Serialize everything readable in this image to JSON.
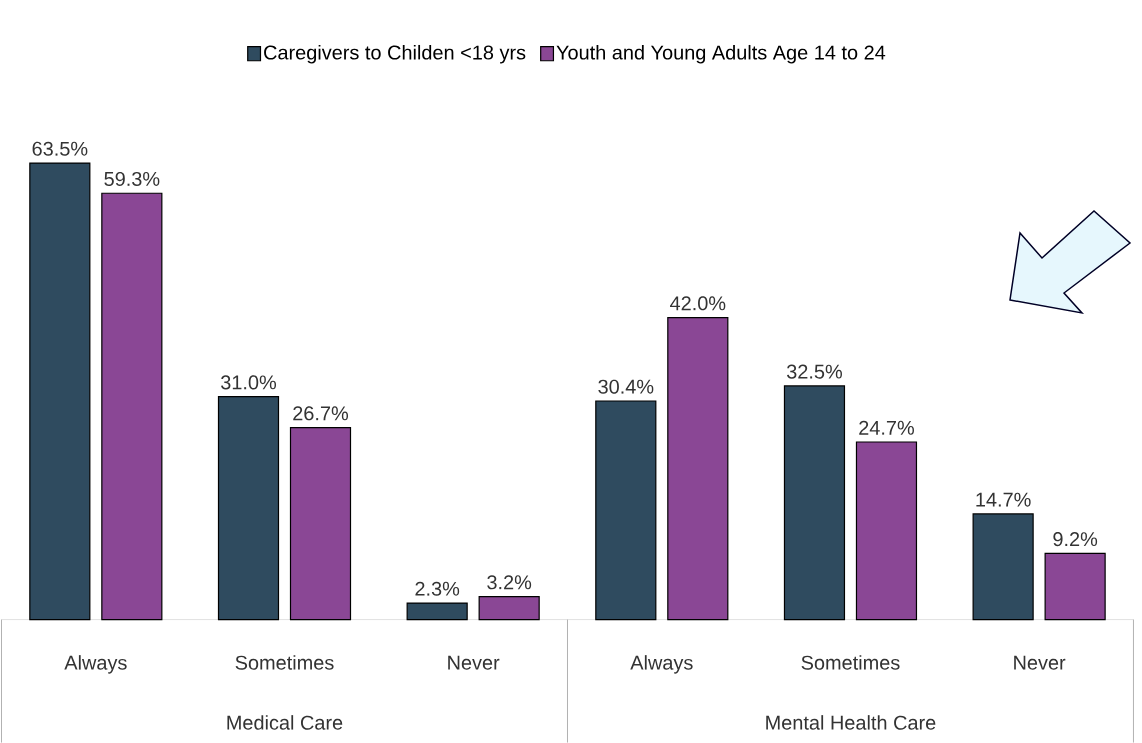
{
  "chart_data": {
    "type": "bar",
    "categories": [
      "Always",
      "Sometimes",
      "Never",
      "Always",
      "Sometimes",
      "Never"
    ],
    "series": [
      {
        "name": "Caregivers to Childen <18 yrs",
        "color": "#2f4b5f",
        "values": [
          63.5,
          31.0,
          2.3,
          30.4,
          32.5,
          14.7
        ],
        "value_labels": [
          "63.5%",
          "31.0%",
          "2.3%",
          "30.4%",
          "32.5%",
          "14.7%"
        ]
      },
      {
        "name": "Youth and Young Adults Age 14 to 24",
        "color": "#8a4795",
        "values": [
          59.3,
          26.7,
          3.2,
          42.0,
          24.7,
          9.2
        ],
        "value_labels": [
          "59.3%",
          "26.7%",
          "3.2%",
          "42.0%",
          "24.7%",
          "9.2%"
        ]
      }
    ],
    "annotations": [
      "Medical Care",
      "Mental Health Care"
    ],
    "legend": "top"
  }
}
